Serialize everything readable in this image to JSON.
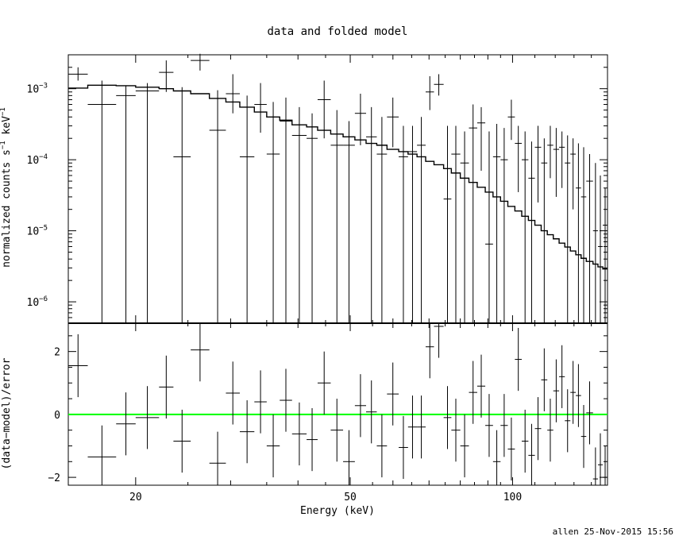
{
  "chart_data": [
    {
      "type": "scatter",
      "panel": "top",
      "title": "data and folded model",
      "xlabel": "",
      "ylabel_main": "normalized counts s",
      "ylabel_sup1": "−1",
      "ylabel_mid": " keV",
      "ylabel_sup2": "−1",
      "yscale": "log",
      "xscale": "log",
      "xlim": [
        15,
        150
      ],
      "ylim": [
        5e-07,
        0.003
      ],
      "ytick_labels": [
        {
          "value": 0.001,
          "mantissa": "10",
          "exp": "−3"
        },
        {
          "value": 0.0001,
          "mantissa": "10",
          "exp": "−4"
        },
        {
          "value": 1e-05,
          "mantissa": "10",
          "exp": "−5"
        },
        {
          "value": 1e-06,
          "mantissa": "10",
          "exp": "−6"
        }
      ],
      "data_series": [
        [
          15.0,
          16.3,
          0.0016,
          0.0013,
          0.002
        ],
        [
          16.3,
          18.4,
          0.0006,
          5e-07,
          0.0013
        ],
        [
          18.4,
          20.0,
          0.0008,
          5e-07,
          0.0011
        ],
        [
          20.0,
          22.1,
          0.00093,
          5e-07,
          0.0012
        ],
        [
          22.1,
          23.5,
          0.0017,
          0.0009,
          0.0025
        ],
        [
          23.5,
          25.3,
          0.00011,
          5e-07,
          0.00105
        ],
        [
          25.3,
          27.4,
          0.0025,
          0.0018,
          0.0031
        ],
        [
          27.4,
          29.4,
          0.00026,
          5e-07,
          0.00095
        ],
        [
          29.4,
          31.2,
          0.00085,
          0.00045,
          0.0016
        ],
        [
          31.2,
          33.2,
          0.00011,
          5e-07,
          0.0008
        ],
        [
          33.2,
          35.0,
          0.0006,
          0.00024,
          0.0012
        ],
        [
          35.0,
          37.0,
          0.00012,
          5e-07,
          0.00065
        ],
        [
          37.0,
          39.0,
          0.00035,
          5e-07,
          0.00075
        ],
        [
          39.0,
          41.5,
          0.00022,
          5e-07,
          0.00055
        ],
        [
          41.5,
          43.5,
          0.0002,
          5e-07,
          0.00045
        ],
        [
          43.5,
          46.0,
          0.0007,
          0.0002,
          0.0013
        ],
        [
          46.0,
          48.5,
          0.00016,
          5e-07,
          0.0005
        ],
        [
          48.5,
          51.0,
          0.00016,
          5e-07,
          0.00035
        ],
        [
          51.0,
          53.5,
          0.00045,
          0.00016,
          0.00085
        ],
        [
          53.5,
          56.0,
          0.00021,
          5e-07,
          0.00055
        ],
        [
          56.0,
          58.5,
          0.00012,
          5e-07,
          0.0004
        ],
        [
          58.5,
          61.5,
          0.0004,
          0.00015,
          0.00075
        ],
        [
          61.5,
          64.0,
          0.00011,
          5e-07,
          0.0003
        ],
        [
          64.0,
          66.5,
          0.00013,
          5e-07,
          0.0003
        ],
        [
          66.5,
          69.0,
          0.00016,
          5e-07,
          0.0004
        ],
        [
          69.0,
          71.5,
          0.0009,
          0.0005,
          0.0015
        ],
        [
          71.5,
          74.5,
          0.00115,
          0.0008,
          0.0016
        ],
        [
          74.5,
          77.0,
          2.8e-05,
          5e-07,
          0.0003
        ],
        [
          77.0,
          80.0,
          0.00012,
          5e-07,
          0.0003
        ],
        [
          80.0,
          83.0,
          9e-05,
          5e-07,
          0.00025
        ],
        [
          83.0,
          86.0,
          0.00028,
          5e-07,
          0.0006
        ],
        [
          86.0,
          89.0,
          0.00033,
          7e-05,
          0.00055
        ],
        [
          89.0,
          92.0,
          6.5e-06,
          5e-07,
          0.00025
        ],
        [
          92.0,
          95.0,
          0.00011,
          5e-07,
          0.00032
        ],
        [
          95.0,
          98.0,
          0.0001,
          5e-07,
          0.00028
        ],
        [
          98.0,
          101.0,
          0.0004,
          0.00019,
          0.0007
        ],
        [
          101.0,
          104.0,
          0.00017,
          3.5e-05,
          0.0003
        ],
        [
          104.0,
          107.0,
          0.0001,
          5e-07,
          0.00025
        ],
        [
          107.0,
          110.0,
          5.5e-05,
          5e-07,
          0.00018
        ],
        [
          110.0,
          113.0,
          0.00015,
          2.5e-05,
          0.0003
        ],
        [
          113.0,
          116.0,
          9e-05,
          5e-07,
          0.0002
        ],
        [
          116.0,
          119.0,
          0.00016,
          5.5e-05,
          0.0003
        ],
        [
          119.0,
          122.0,
          0.00014,
          3e-05,
          0.00028
        ],
        [
          122.0,
          125.0,
          0.00015,
          4e-05,
          0.00025
        ],
        [
          125.0,
          128.0,
          9e-05,
          5e-07,
          0.00022
        ],
        [
          128.0,
          131.0,
          0.00012,
          2e-05,
          0.0002
        ],
        [
          131.0,
          134.0,
          4e-05,
          5e-07,
          0.00017
        ],
        [
          134.0,
          137.0,
          3e-05,
          5e-07,
          0.00015
        ],
        [
          137.0,
          141.0,
          5e-05,
          5e-07,
          0.00012
        ],
        [
          141.0,
          144.0,
          1e-05,
          5e-07,
          9e-05
        ],
        [
          144.0,
          147.0,
          6e-06,
          5e-07,
          6e-05
        ],
        [
          147.0,
          150.0,
          1.2e-05,
          5e-07,
          4e-05
        ]
      ],
      "model_series": {
        "edges": [
          15.0,
          16.3,
          18.4,
          20.0,
          22.1,
          23.5,
          25.3,
          27.4,
          29.4,
          31.2,
          33.2,
          35.0,
          37.0,
          39.0,
          41.5,
          43.5,
          46.0,
          48.5,
          51.0,
          53.5,
          56.0,
          58.5,
          61.5,
          64.0,
          66.5,
          69.0,
          71.5,
          74.5,
          77.0,
          80.0,
          83.0,
          86.0,
          89.0,
          92.0,
          95.0,
          98.0,
          101.0,
          104.0,
          107.0,
          110.0,
          113.0,
          116.0,
          119.0,
          122.0,
          125.0,
          128.0,
          131.0,
          134.0,
          137.0,
          141.0,
          144.0,
          147.0,
          150.0
        ],
        "values": [
          0.00102,
          0.00112,
          0.0011,
          0.00105,
          0.001,
          0.00093,
          0.00085,
          0.00073,
          0.00065,
          0.00055,
          0.00047,
          0.0004,
          0.00036,
          0.00031,
          0.00029,
          0.00026,
          0.00023,
          0.00021,
          0.00019,
          0.00017,
          0.00016,
          0.00014,
          0.00013,
          0.00012,
          0.00011,
          9.5e-05,
          8.5e-05,
          7.5e-05,
          6.5e-05,
          5.5e-05,
          4.8e-05,
          4.1e-05,
          3.5e-05,
          3e-05,
          2.6e-05,
          2.2e-05,
          1.9e-05,
          1.6e-05,
          1.4e-05,
          1.2e-05,
          1e-05,
          8.8e-06,
          7.7e-06,
          6.7e-06,
          5.9e-06,
          5.2e-06,
          4.6e-06,
          4.1e-06,
          3.7e-06,
          3.4e-06,
          3.1e-06,
          2.9e-06
        ]
      }
    },
    {
      "type": "scatter",
      "panel": "bottom",
      "xlabel": "Energy (keV)",
      "ylabel": "(data−model)/error",
      "xscale": "log",
      "xlim": [
        15,
        150
      ],
      "ylim": [
        -2.25,
        2.9
      ],
      "xtick_labels": [
        {
          "value": 20,
          "label": "20"
        },
        {
          "value": 50,
          "label": "50"
        },
        {
          "value": 100,
          "label": "100"
        }
      ],
      "ytick_labels": [
        {
          "value": 2,
          "label": "2"
        },
        {
          "value": 0,
          "label": "0"
        },
        {
          "value": -2,
          "label": "−2"
        }
      ],
      "reference_line": {
        "value": 0,
        "color": "#00ff00"
      },
      "residuals": [
        [
          15.0,
          16.3,
          1.55,
          0.55,
          2.55
        ],
        [
          16.3,
          18.4,
          -1.35,
          -2.35,
          -0.35
        ],
        [
          18.4,
          20.0,
          -0.3,
          -1.3,
          0.7
        ],
        [
          20.0,
          22.1,
          -0.1,
          -1.1,
          0.9
        ],
        [
          22.1,
          23.5,
          0.87,
          -0.13,
          1.87
        ],
        [
          23.5,
          25.3,
          -0.85,
          -1.85,
          0.15
        ],
        [
          25.3,
          27.4,
          2.05,
          1.05,
          3.05
        ],
        [
          27.4,
          29.4,
          -1.55,
          -2.55,
          -0.55
        ],
        [
          29.4,
          31.2,
          0.68,
          -0.32,
          1.68
        ],
        [
          31.2,
          33.2,
          -0.55,
          -1.55,
          0.45
        ],
        [
          33.2,
          35.0,
          0.4,
          -0.6,
          1.4
        ],
        [
          35.0,
          37.0,
          -1.0,
          -2.0,
          0.0
        ],
        [
          37.0,
          39.0,
          0.45,
          -0.55,
          1.45
        ],
        [
          39.0,
          41.5,
          -0.62,
          -1.62,
          0.38
        ],
        [
          41.5,
          43.5,
          -0.8,
          -1.8,
          0.2
        ],
        [
          43.5,
          46.0,
          1.0,
          0.0,
          2.0
        ],
        [
          46.0,
          48.5,
          -0.5,
          -1.5,
          0.5
        ],
        [
          48.5,
          51.0,
          -1.5,
          -2.5,
          -0.5
        ],
        [
          51.0,
          53.5,
          0.28,
          -0.72,
          1.28
        ],
        [
          53.5,
          56.0,
          0.08,
          -0.92,
          1.08
        ],
        [
          56.0,
          58.5,
          -1.0,
          -2.0,
          0.0
        ],
        [
          58.5,
          61.5,
          0.65,
          -0.35,
          1.65
        ],
        [
          61.5,
          64.0,
          -1.05,
          -2.05,
          -0.05
        ],
        [
          64.0,
          66.5,
          -0.4,
          -1.4,
          0.6
        ],
        [
          66.5,
          69.0,
          -0.4,
          -1.4,
          0.6
        ],
        [
          69.0,
          71.5,
          2.15,
          1.15,
          3.15
        ],
        [
          71.5,
          74.5,
          2.8,
          1.8,
          3.8
        ],
        [
          74.5,
          77.0,
          -0.1,
          -1.1,
          0.9
        ],
        [
          77.0,
          80.0,
          -0.5,
          -1.5,
          0.5
        ],
        [
          80.0,
          83.0,
          -1.0,
          -2.0,
          0.0
        ],
        [
          83.0,
          86.0,
          0.7,
          -0.3,
          1.7
        ],
        [
          86.0,
          89.0,
          0.9,
          -0.1,
          1.9
        ],
        [
          89.0,
          92.0,
          -0.35,
          -1.35,
          0.65
        ],
        [
          92.0,
          95.0,
          -1.5,
          -2.5,
          -0.5
        ],
        [
          95.0,
          98.0,
          -0.35,
          -1.35,
          0.65
        ],
        [
          98.0,
          101.0,
          -1.1,
          -2.1,
          -0.1
        ],
        [
          101.0,
          104.0,
          1.75,
          0.75,
          2.75
        ],
        [
          104.0,
          107.0,
          -0.85,
          -1.85,
          0.15
        ],
        [
          107.0,
          110.0,
          -1.3,
          -2.3,
          -0.3
        ],
        [
          110.0,
          113.0,
          -0.45,
          -1.45,
          0.55
        ],
        [
          113.0,
          116.0,
          1.1,
          0.1,
          2.1
        ],
        [
          116.0,
          119.0,
          -0.5,
          -1.5,
          0.5
        ],
        [
          119.0,
          122.0,
          0.75,
          -0.25,
          1.75
        ],
        [
          122.0,
          125.0,
          1.2,
          0.2,
          2.2
        ],
        [
          125.0,
          128.0,
          -0.2,
          -1.2,
          0.8
        ],
        [
          128.0,
          131.0,
          0.7,
          -0.3,
          1.7
        ],
        [
          131.0,
          134.0,
          0.6,
          -0.4,
          1.6
        ],
        [
          134.0,
          137.0,
          -0.7,
          -1.7,
          0.3
        ],
        [
          137.0,
          141.0,
          0.05,
          -0.95,
          1.05
        ],
        [
          141.0,
          144.0,
          -2.05,
          -2.25,
          -1.05
        ],
        [
          144.0,
          147.0,
          -1.6,
          -2.25,
          -0.6
        ],
        [
          147.0,
          150.0,
          -2.0,
          -2.25,
          -1.0
        ]
      ]
    }
  ],
  "footer": {
    "stamp": "allen 25-Nov-2015 15:56"
  }
}
